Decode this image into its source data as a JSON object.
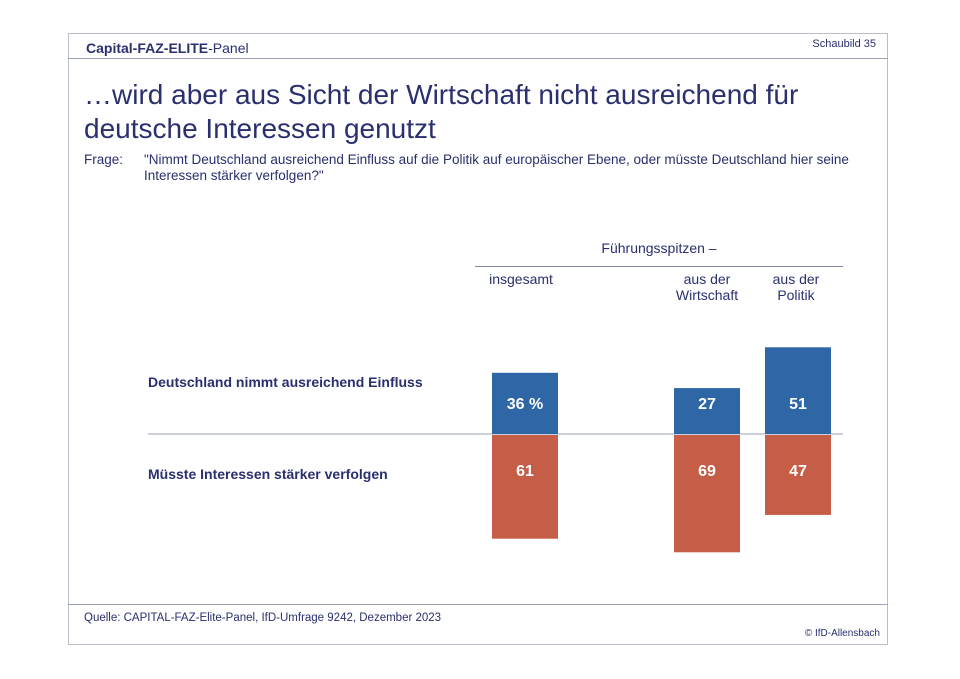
{
  "header": {
    "brand_bold": "Capital-FAZ-ELITE",
    "brand_rest": "-Panel",
    "chart_number": "Schaubild 35"
  },
  "title": "…wird aber aus Sicht der Wirtschaft nicht ausreichend für deutsche Interessen genutzt",
  "question": {
    "label": "Frage:",
    "text": "\"Nimmt Deutschland ausreichend Einfluss auf die Politik auf europäischer Ebene, oder müsste Deutschland hier seine Interessen stärker verfolgen?\""
  },
  "group_header": "Führungsspitzen –",
  "footer": {
    "source": "Quelle: CAPITAL-FAZ-Elite-Panel, IfD-Umfrage 9242, Dezember 2023",
    "copyright": "© IfD-Allensbach"
  },
  "colors": {
    "positive": "#2e66a6",
    "negative": "#c65d46",
    "text": "#2a2f6e",
    "rule": "#9aa0b8"
  },
  "chart_data": {
    "type": "bar",
    "orientation": "diverging-vertical",
    "unit": "%",
    "categories": [
      "insgesamt",
      "aus der\nWirtschaft",
      "aus der\nPolitik"
    ],
    "series": [
      {
        "name": "Deutschland nimmt ausreichend Einfluss",
        "values": [
          36,
          27,
          51
        ],
        "labels": [
          "36 %",
          "27",
          "51"
        ],
        "color": "#2e66a6"
      },
      {
        "name": "Müsste Interessen stärker verfolgen",
        "values": [
          61,
          69,
          47
        ],
        "labels": [
          "61",
          "69",
          "47"
        ],
        "color": "#c65d46"
      }
    ]
  }
}
